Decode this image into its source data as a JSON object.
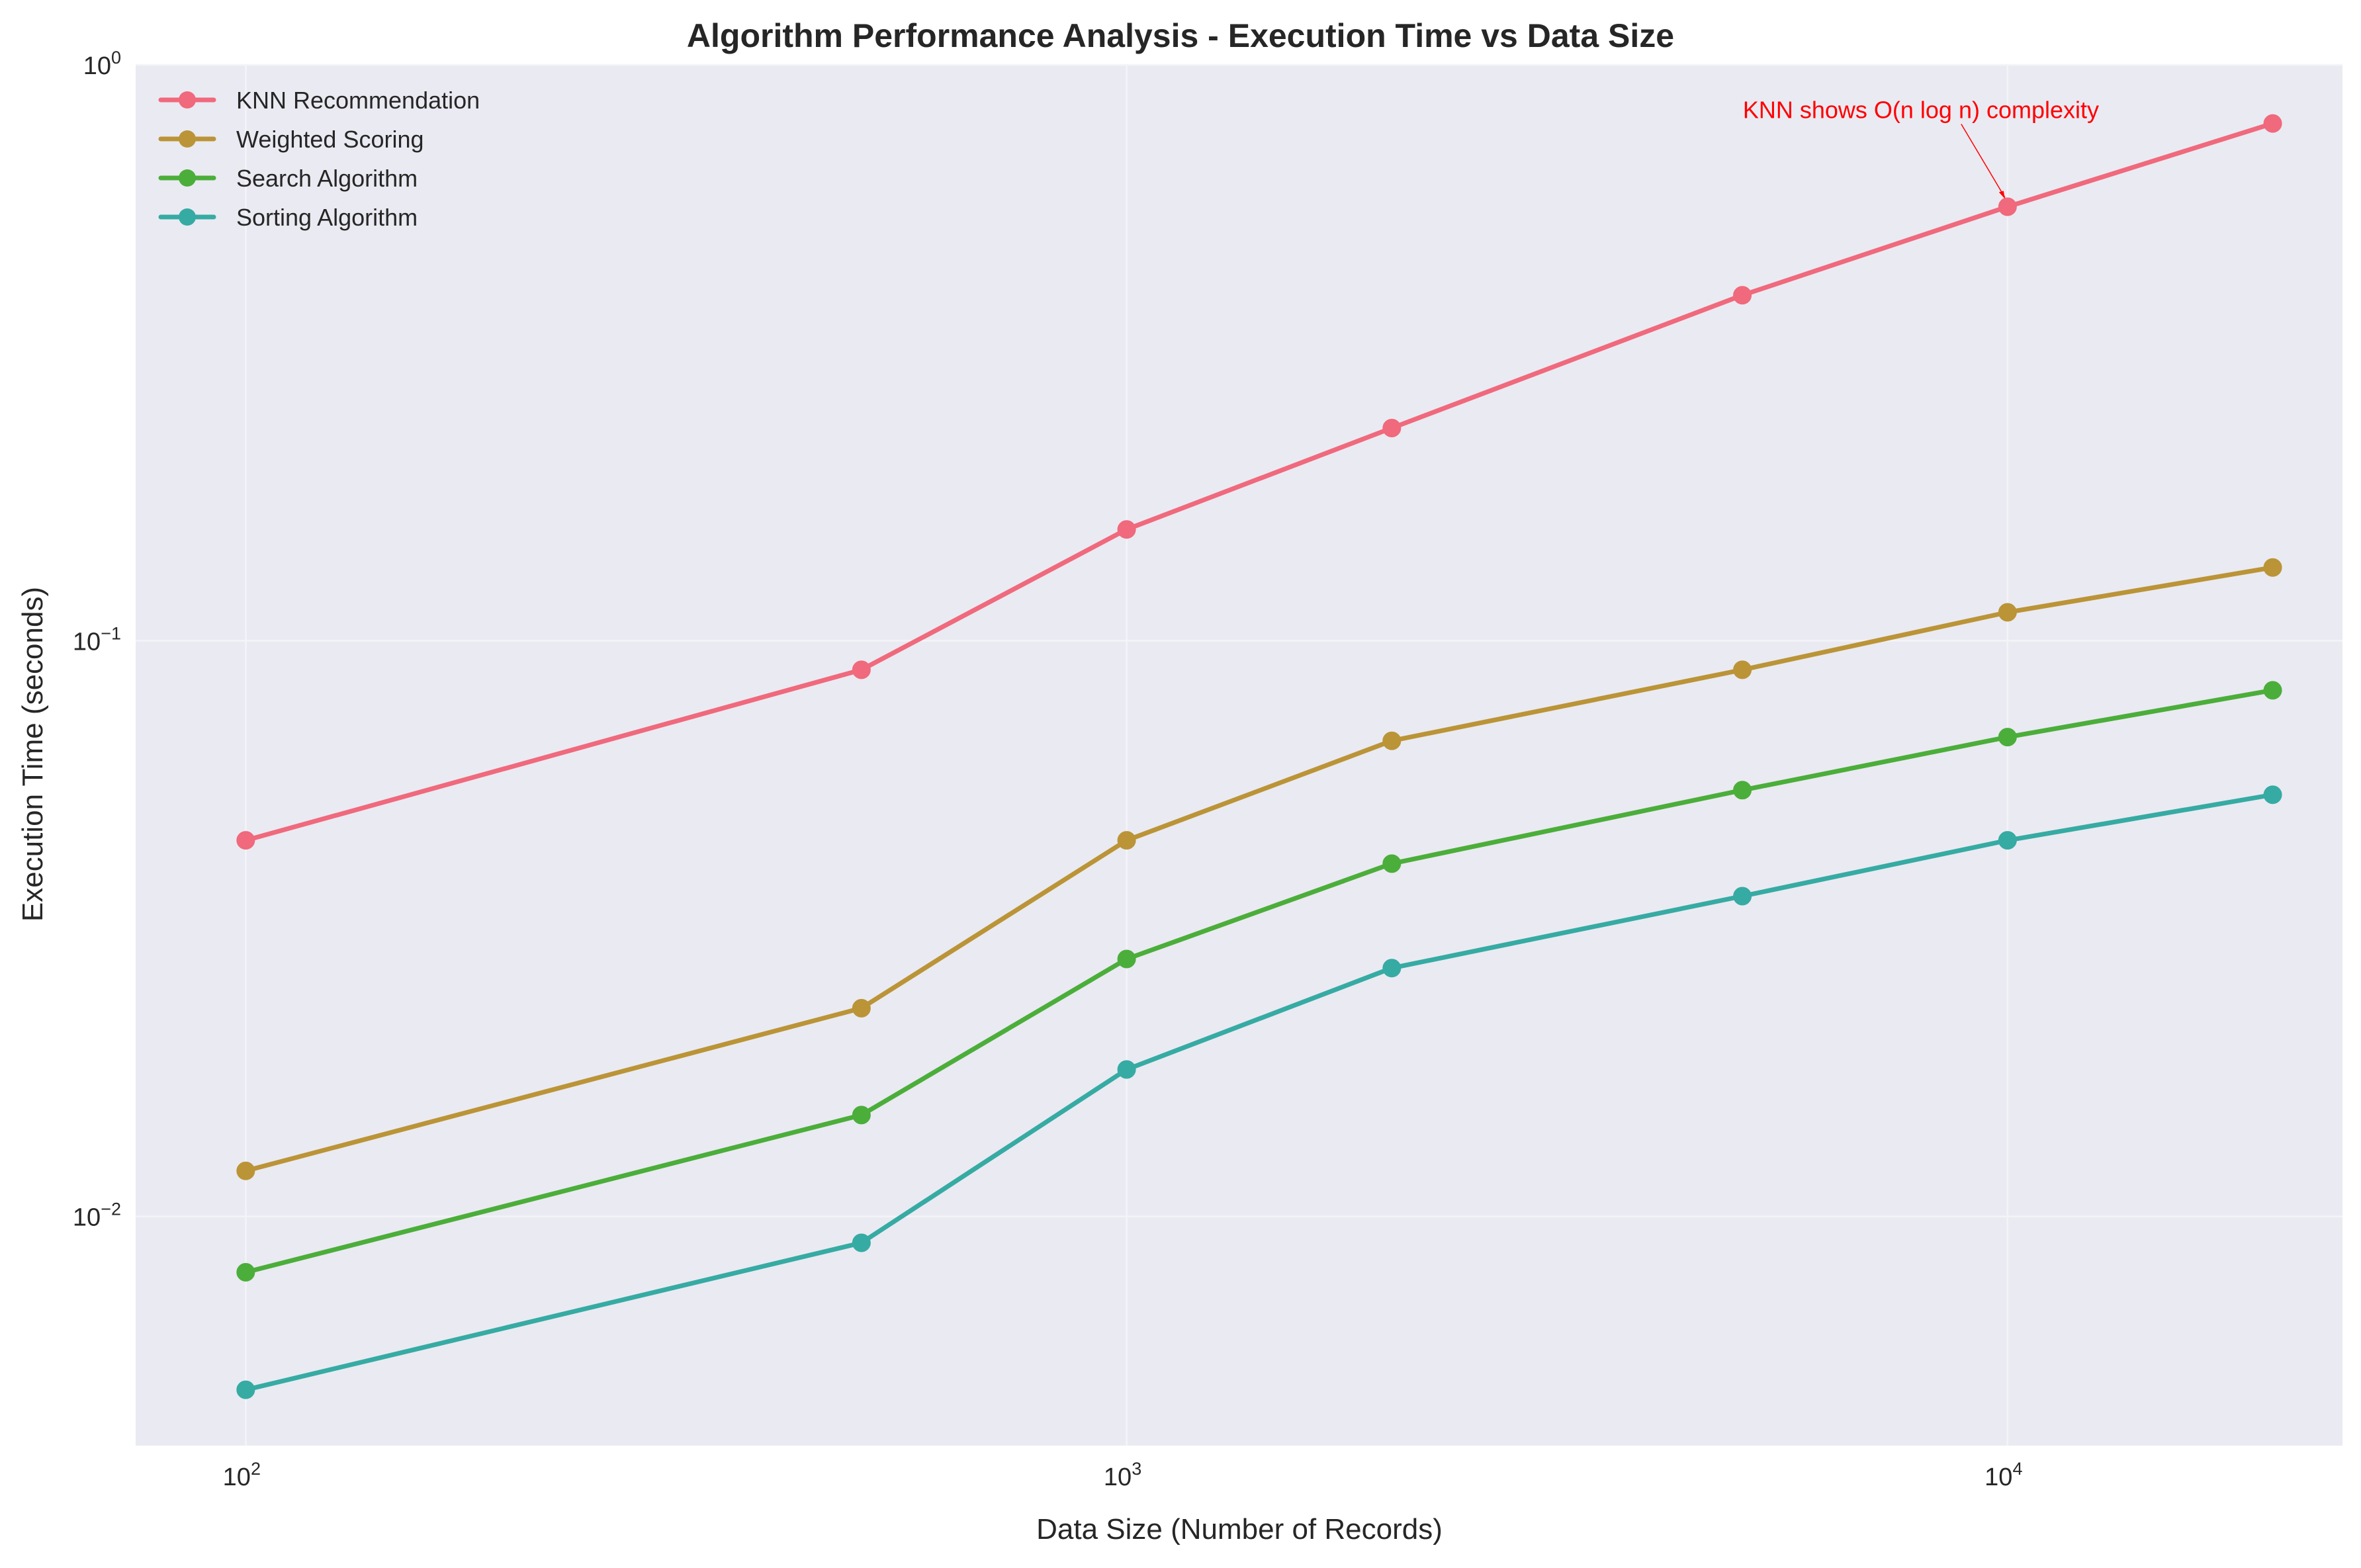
{
  "chart_data": {
    "type": "line",
    "title": "Algorithm Performance Analysis - Execution Time vs Data Size",
    "xlabel": "Data Size (Number of Records)",
    "ylabel": "Execution Time (seconds)",
    "xscale": "log",
    "yscale": "log",
    "xlim": [
      75,
      24000
    ],
    "ylim": [
      0.004,
      1.0
    ],
    "x_ticks": [
      {
        "base": "10",
        "exp": "2"
      },
      {
        "base": "10",
        "exp": "3"
      },
      {
        "base": "10",
        "exp": "4"
      }
    ],
    "y_ticks": [
      {
        "base": "10",
        "exp": "−2"
      },
      {
        "base": "10",
        "exp": "−1"
      },
      {
        "base": "10",
        "exp": "0"
      }
    ],
    "grid": true,
    "legend_position": "top-left",
    "x": [
      100,
      500,
      1000,
      2000,
      5000,
      10000,
      20000
    ],
    "series": [
      {
        "name": "KNN Recommendation",
        "color": "#f0697c",
        "values": [
          0.045,
          0.089,
          0.156,
          0.234,
          0.398,
          0.567,
          0.791
        ]
      },
      {
        "name": "Weighted Scoring",
        "color": "#bb9437",
        "values": [
          0.012,
          0.023,
          0.045,
          0.067,
          0.089,
          0.112,
          0.134
        ]
      },
      {
        "name": "Search Algorithm",
        "color": "#4bae3a",
        "values": [
          0.008,
          0.015,
          0.028,
          0.041,
          0.055,
          0.068,
          0.082
        ]
      },
      {
        "name": "Sorting Algorithm",
        "color": "#36aba3",
        "values": [
          0.005,
          0.009,
          0.018,
          0.027,
          0.036,
          0.045,
          0.054
        ]
      }
    ],
    "annotation": {
      "text": "KNN shows O(n log n) complexity",
      "color": "#ff0000",
      "x": 10000,
      "y": 0.567
    }
  }
}
